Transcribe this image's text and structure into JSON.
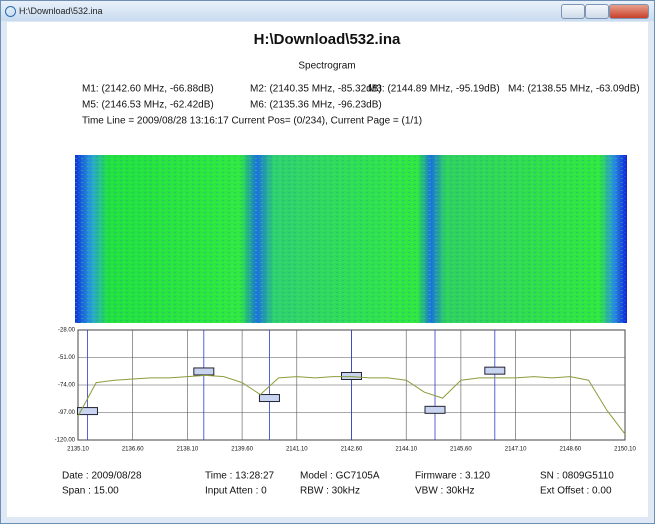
{
  "window": {
    "title": "H:\\Download\\532.ina"
  },
  "header": {
    "title": "H:\\Download\\532.ina",
    "subtitle": "Spectrogram",
    "markers": [
      "M1: (2142.60 MHz, -66.88dB)",
      "M2: (2140.35 MHz, -85.32dB)",
      "M3: (2144.89 MHz, -95.19dB)",
      "M4: (2138.55 MHz, -63.09dB)",
      "M5: (2146.53 MHz, -62.42dB)",
      "M6: (2135.36 MHz, -96.23dB)"
    ],
    "time_line": "Time Line = 2009/08/28 13:16:17 Current Pos= (0/234), Current Page = (1/1)"
  },
  "chart_data": {
    "type": "line",
    "x": [
      2135.1,
      2135.6,
      2136.1,
      2136.6,
      2137.1,
      2137.6,
      2138.1,
      2138.6,
      2139.1,
      2139.6,
      2140.1,
      2140.6,
      2141.1,
      2141.6,
      2142.1,
      2142.6,
      2143.1,
      2143.6,
      2144.1,
      2144.6,
      2145.1,
      2145.6,
      2146.1,
      2146.6,
      2147.1,
      2147.6,
      2148.1,
      2148.6,
      2149.1,
      2149.6,
      2150.1
    ],
    "series": [
      {
        "color": "#8c9c3c",
        "values": [
          -100,
          -72,
          -70,
          -69,
          -68,
          -68,
          -67,
          -66,
          -67,
          -72,
          -82,
          -68,
          -67,
          -68,
          -67,
          -67,
          -68,
          -68,
          -70,
          -80,
          -85,
          -70,
          -68,
          -68,
          -68,
          -67,
          -68,
          -67,
          -70,
          -95,
          -115
        ]
      }
    ],
    "markers": {
      "x": [
        2142.6,
        2140.35,
        2144.89,
        2138.55,
        2146.53,
        2135.36
      ],
      "y": [
        -66.88,
        -85.32,
        -95.19,
        -63.09,
        -62.42,
        -96.23
      ]
    },
    "xlim": [
      2135.1,
      2150.1
    ],
    "xticks": [
      {
        "value": 2135.1,
        "label": "2135.10"
      },
      {
        "value": 2136.6,
        "label": "2136.60"
      },
      {
        "value": 2138.1,
        "label": "2138.10"
      },
      {
        "value": 2139.6,
        "label": "2139.60"
      },
      {
        "value": 2141.1,
        "label": "2141.10"
      },
      {
        "value": 2142.6,
        "label": "2142.60"
      },
      {
        "value": 2144.1,
        "label": "2144.10"
      },
      {
        "value": 2145.6,
        "label": "2145.60"
      },
      {
        "value": 2147.1,
        "label": "2147.10"
      },
      {
        "value": 2148.6,
        "label": "2148.60"
      },
      {
        "value": 2150.1,
        "label": "2150.10"
      }
    ],
    "ylim": [
      -120,
      -28
    ],
    "yticks": [
      {
        "value": -28,
        "label": "-28.00"
      },
      {
        "value": -51,
        "label": "-51.00"
      },
      {
        "value": -74,
        "label": "-74.00"
      },
      {
        "value": -97,
        "label": "-97.00"
      },
      {
        "value": -120,
        "label": "-120.00"
      }
    ],
    "grid": true
  },
  "footer": {
    "rows": [
      [
        "Date : 2009/08/28",
        "Time : 13:28:27",
        "Model : GC7105A",
        "Firmware : 3.120",
        "SN : 0809G5110"
      ],
      [
        "Span : 15.00",
        "Input Atten : 0",
        "RBW : 30kHz",
        "VBW : 30kHz",
        "Ext Offset : 0.00"
      ]
    ]
  }
}
